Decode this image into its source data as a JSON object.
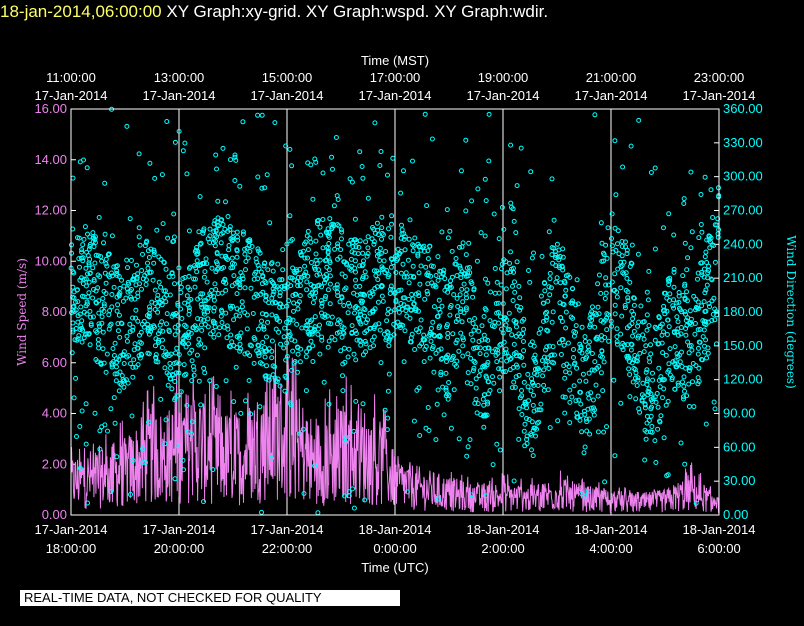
{
  "header": {
    "datetime": "18-jan-2014,06:00:00",
    "graphs": "XY Graph:xy-grid.  XY Graph:wspd.  XY Graph:wdir."
  },
  "footer_note": "REAL-TIME DATA, NOT CHECKED FOR QUALITY",
  "colors": {
    "background": "#000000",
    "wspd": "#ee82ee",
    "wdir": "#00ffff",
    "title": "#ffff66",
    "text": "#ffffff"
  },
  "chart_data": {
    "type": "line",
    "top_axis": {
      "label": "Time (MST)",
      "ticks": [
        {
          "h": 18,
          "time": "11:00:00",
          "date": "17-Jan-2014"
        },
        {
          "h": 20,
          "time": "13:00:00",
          "date": "17-Jan-2014"
        },
        {
          "h": 22,
          "time": "15:00:00",
          "date": "17-Jan-2014"
        },
        {
          "h": 24,
          "time": "17:00:00",
          "date": "17-Jan-2014"
        },
        {
          "h": 26,
          "time": "19:00:00",
          "date": "17-Jan-2014"
        },
        {
          "h": 28,
          "time": "21:00:00",
          "date": "17-Jan-2014"
        },
        {
          "h": 30,
          "time": "23:00:00",
          "date": "17-Jan-2014"
        }
      ]
    },
    "bottom_axis": {
      "label": "Time (UTC)",
      "range_hours": [
        18,
        30
      ],
      "ticks": [
        {
          "h": 18,
          "date": "17-Jan-2014",
          "time": "18:00:00"
        },
        {
          "h": 20,
          "date": "17-Jan-2014",
          "time": "20:00:00"
        },
        {
          "h": 22,
          "date": "17-Jan-2014",
          "time": "22:00:00"
        },
        {
          "h": 24,
          "date": "18-Jan-2014",
          "time": "0:00:00"
        },
        {
          "h": 26,
          "date": "18-Jan-2014",
          "time": "2:00:00"
        },
        {
          "h": 28,
          "date": "18-Jan-2014",
          "time": "4:00:00"
        },
        {
          "h": 30,
          "date": "18-Jan-2014",
          "time": "6:00:00"
        }
      ]
    },
    "left_axis": {
      "label": "Wind Speed (m/s)",
      "ylim": [
        0,
        16
      ],
      "ticks": [
        "0.00",
        "2.00",
        "4.00",
        "6.00",
        "8.00",
        "10.00",
        "12.00",
        "14.00",
        "16.00"
      ]
    },
    "right_axis": {
      "label": "Wind Direction (degrees)",
      "ylim": [
        0,
        360
      ],
      "ticks": [
        "0.00",
        "30.00",
        "60.00",
        "90.00",
        "120.00",
        "150.00",
        "180.00",
        "210.00",
        "240.00",
        "270.00",
        "300.00",
        "330.00",
        "360.00"
      ]
    },
    "series": [
      {
        "key": "wspd",
        "style": "line",
        "axis": "left",
        "points": [
          [
            18.0,
            1.4
          ],
          [
            18.5,
            1.6
          ],
          [
            19.0,
            1.8
          ],
          [
            19.25,
            2.2
          ],
          [
            19.5,
            2.6
          ],
          [
            19.75,
            2.4
          ],
          [
            20.0,
            2.8
          ],
          [
            20.25,
            3.0
          ],
          [
            20.5,
            2.8
          ],
          [
            20.75,
            2.5
          ],
          [
            21.0,
            2.4
          ],
          [
            21.25,
            2.6
          ],
          [
            21.5,
            3.0
          ],
          [
            21.75,
            3.4
          ],
          [
            22.0,
            3.2
          ],
          [
            22.25,
            2.8
          ],
          [
            22.5,
            2.2
          ],
          [
            22.75,
            2.4
          ],
          [
            23.0,
            2.6
          ],
          [
            23.25,
            2.7
          ],
          [
            23.5,
            2.5
          ],
          [
            23.75,
            2.2
          ],
          [
            24.0,
            1.4
          ],
          [
            24.5,
            1.1
          ],
          [
            25.0,
            0.9
          ],
          [
            25.5,
            0.7
          ],
          [
            26.0,
            0.8
          ],
          [
            26.5,
            0.7
          ],
          [
            27.0,
            0.9
          ],
          [
            27.5,
            0.7
          ],
          [
            28.0,
            0.6
          ],
          [
            28.5,
            0.5
          ],
          [
            29.0,
            0.6
          ],
          [
            29.5,
            1.0
          ],
          [
            30.0,
            0.4
          ]
        ]
      },
      {
        "key": "wdir",
        "style": "circles",
        "axis": "right",
        "points": [
          [
            18.0,
            195
          ],
          [
            18.25,
            205
          ],
          [
            18.5,
            190
          ],
          [
            18.75,
            175
          ],
          [
            19.0,
            160
          ],
          [
            19.25,
            185
          ],
          [
            19.5,
            200
          ],
          [
            19.75,
            170
          ],
          [
            20.0,
            150
          ],
          [
            20.25,
            175
          ],
          [
            20.5,
            205
          ],
          [
            20.75,
            215
          ],
          [
            21.0,
            200
          ],
          [
            21.25,
            195
          ],
          [
            21.5,
            180
          ],
          [
            21.75,
            170
          ],
          [
            22.0,
            165
          ],
          [
            22.25,
            185
          ],
          [
            22.5,
            205
          ],
          [
            22.75,
            210
          ],
          [
            23.0,
            200
          ],
          [
            23.25,
            190
          ],
          [
            23.5,
            200
          ],
          [
            23.75,
            210
          ],
          [
            24.0,
            195
          ],
          [
            24.25,
            210
          ],
          [
            24.5,
            190
          ],
          [
            24.75,
            180
          ],
          [
            25.0,
            155
          ],
          [
            25.25,
            190
          ],
          [
            25.5,
            150
          ],
          [
            25.75,
            120
          ],
          [
            26.0,
            180
          ],
          [
            26.25,
            160
          ],
          [
            26.5,
            100
          ],
          [
            26.75,
            150
          ],
          [
            27.0,
            195
          ],
          [
            27.25,
            160
          ],
          [
            27.5,
            110
          ],
          [
            27.75,
            150
          ],
          [
            28.0,
            220
          ],
          [
            28.25,
            190
          ],
          [
            28.5,
            150
          ],
          [
            28.75,
            110
          ],
          [
            29.0,
            150
          ],
          [
            29.25,
            170
          ],
          [
            29.5,
            140
          ],
          [
            29.75,
            190
          ],
          [
            30.0,
            210
          ]
        ]
      }
    ]
  }
}
